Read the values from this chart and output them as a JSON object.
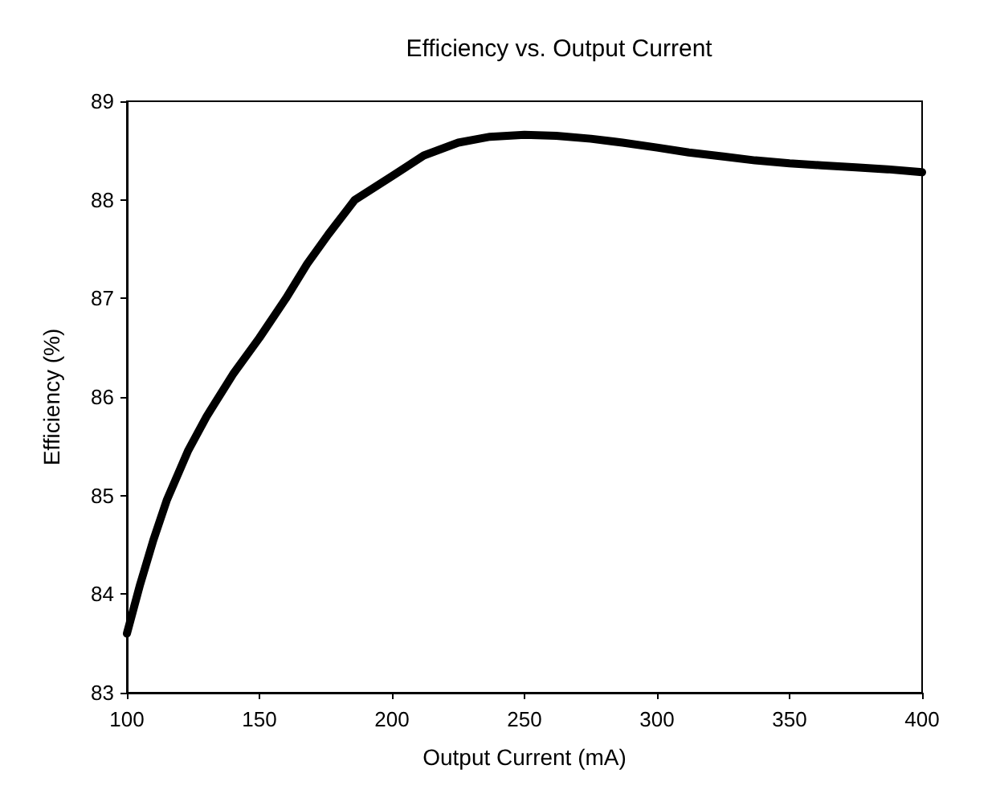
{
  "chart_data": {
    "type": "line",
    "title": "Efficiency vs. Output Current",
    "xlabel": "Output Current (mA)",
    "ylabel": "Efficiency (%)",
    "x": [
      100,
      105,
      110,
      115,
      123,
      130,
      140,
      150,
      160,
      168,
      176,
      186,
      200,
      212,
      225,
      237,
      250,
      262,
      275,
      287,
      300,
      312,
      325,
      337,
      350,
      362,
      375,
      387,
      400
    ],
    "series": [
      {
        "color": "#000000",
        "values": [
          83.6,
          84.1,
          84.55,
          84.95,
          85.45,
          85.8,
          86.23,
          86.6,
          87.0,
          87.35,
          87.65,
          88.0,
          88.24,
          88.45,
          88.58,
          88.64,
          88.66,
          88.65,
          88.62,
          88.58,
          88.53,
          88.48,
          88.44,
          88.4,
          88.37,
          88.35,
          88.33,
          88.31,
          88.28
        ]
      }
    ],
    "xlim": [
      100,
      400
    ],
    "xticks": [
      100,
      150,
      200,
      250,
      300,
      350,
      400
    ],
    "ylim": [
      83,
      89
    ],
    "yticks": [
      83,
      84,
      85,
      86,
      87,
      88,
      89
    ],
    "grid": false,
    "marker": "none",
    "line_style": "solid"
  }
}
